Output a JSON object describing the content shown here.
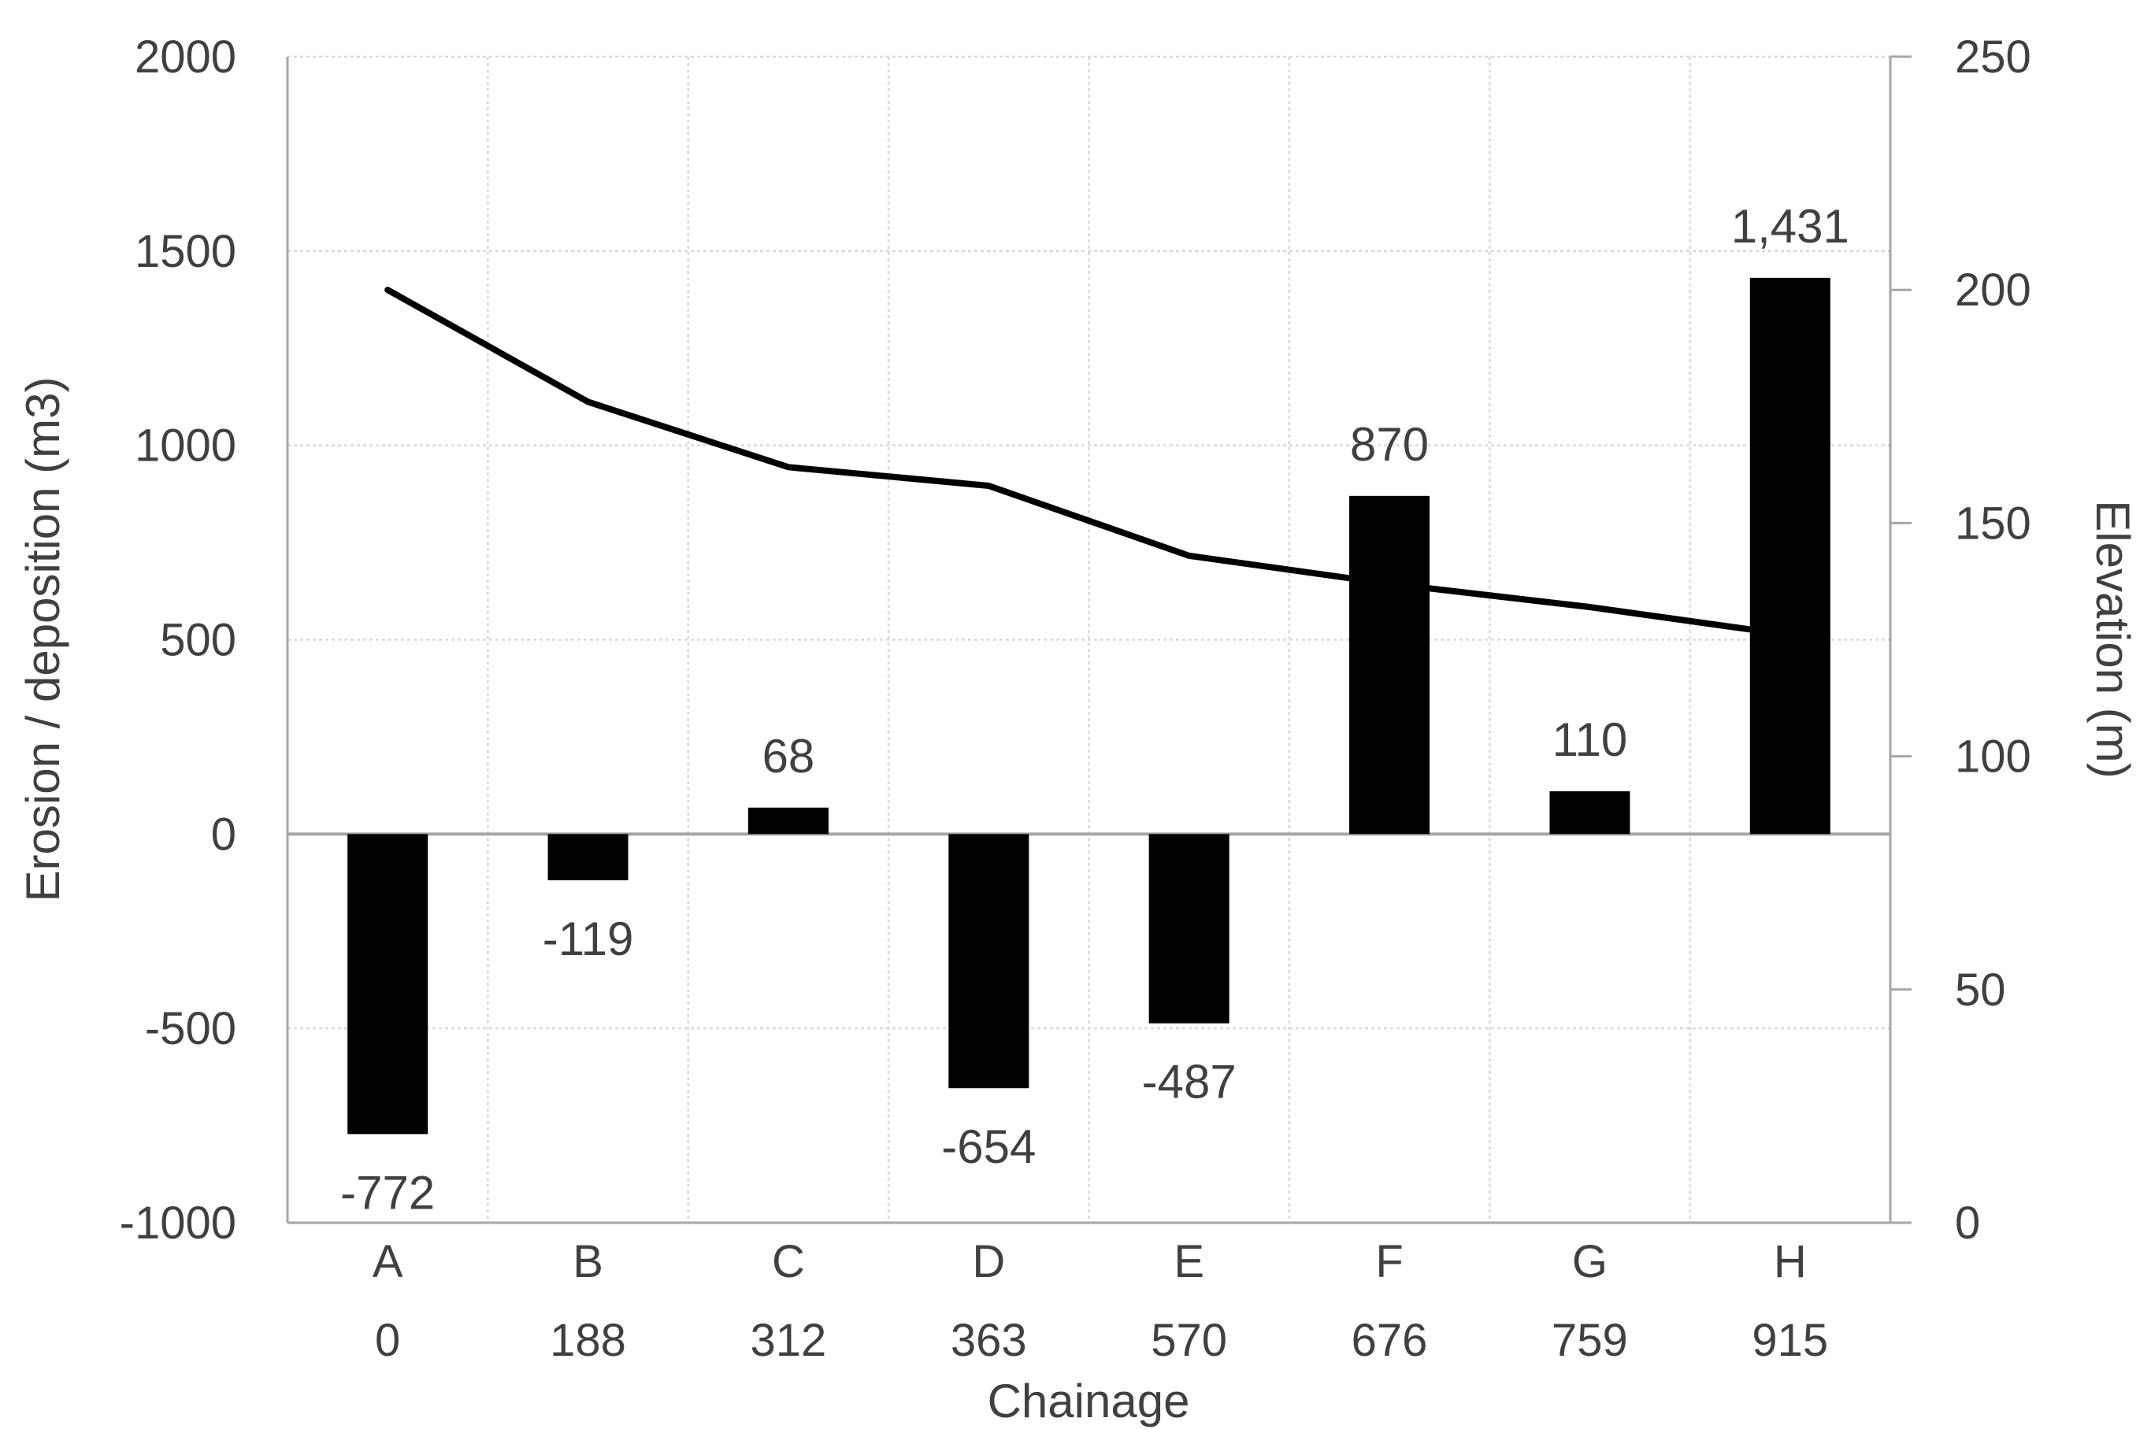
{
  "chart_data": {
    "type": "combo",
    "title": "",
    "xlabel": "Chainage",
    "categories": [
      "A",
      "B",
      "C",
      "D",
      "E",
      "F",
      "G",
      "H"
    ],
    "chainage_values": [
      "0",
      "188",
      "312",
      "363",
      "570",
      "676",
      "759",
      "915"
    ],
    "series": [
      {
        "name": "Erosion / deposition (m3)",
        "type": "bar",
        "axis": "left",
        "values": [
          -772,
          -119,
          68,
          -654,
          -487,
          870,
          110,
          1431
        ],
        "labels": [
          "-772",
          "-119",
          "68",
          "-654",
          "-487",
          "870",
          "110",
          "1,431"
        ]
      },
      {
        "name": "Elevation (m)",
        "type": "line",
        "axis": "right",
        "values": [
          200,
          176,
          162,
          158,
          143,
          137,
          132,
          126
        ]
      }
    ],
    "left_axis": {
      "label": "Erosion / deposition (m3)",
      "min": -1000,
      "max": 2000,
      "ticks": [
        2000,
        1500,
        1000,
        500,
        0,
        -500,
        -1000
      ],
      "tick_labels": [
        "2000",
        "1500",
        "1000",
        "500",
        "0",
        "-500",
        "-1000"
      ]
    },
    "right_axis": {
      "label": "Elevation (m)",
      "min": 0,
      "max": 250,
      "ticks": [
        250,
        200,
        150,
        100,
        50,
        0
      ],
      "tick_labels": [
        "250",
        "200",
        "150",
        "100",
        "50",
        "0"
      ]
    },
    "grid": {
      "horizontal": "dotted",
      "vertical": "dotted",
      "zero_line": "solid"
    },
    "legend": "none",
    "colors": {
      "bar": "#000000",
      "line": "#000000",
      "grid": "#d9d9d9",
      "axis": "#a6a6a6",
      "text": "#404040",
      "background": "#ffffff"
    }
  }
}
